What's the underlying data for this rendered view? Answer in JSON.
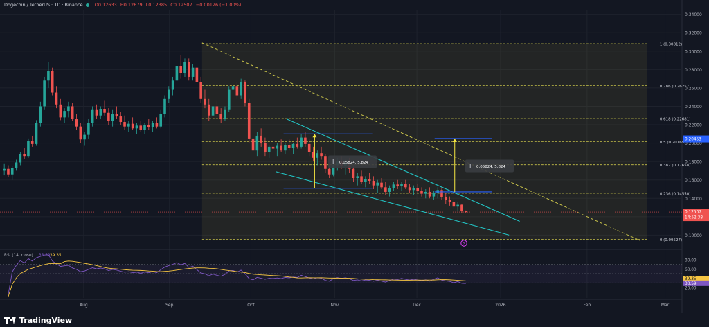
{
  "header": {
    "symbol": "Dogecoin / TetherUS · 1D · Binance",
    "open": "O0.12633",
    "high": "H0.12679",
    "low": "L0.12385",
    "close": "C0.12507",
    "change": "−0.00126 (−1.00%)"
  },
  "rsi_panel": {
    "label": "RSI (14, close)",
    "rsi_value": "33.59",
    "ma_value": "39.35",
    "levels": [
      80,
      60,
      40,
      20
    ],
    "level_labels": [
      "80.00",
      "60.00",
      "40.00",
      "20.00"
    ],
    "rsi_color": "#7e57c2",
    "ma_color": "#f5c542"
  },
  "price_tags": {
    "current": "0.12507",
    "countdown": "14:52:38",
    "marker": "0.20453"
  },
  "measurements": [
    {
      "label": "0.05824, 5,824"
    },
    {
      "label": "0.05824, 5,824"
    }
  ],
  "brand": {
    "name": "TradingView"
  },
  "colors": {
    "up": "#26a69a",
    "down": "#ef5350",
    "fib": "#c8c24a",
    "channel": "#22c5c5",
    "range_line": "#2962ff",
    "arrow": "#f5e642"
  },
  "chart_data": {
    "type": "candlestick",
    "title": "Dogecoin / TetherUS · 1D · Binance",
    "y_axis": {
      "min": 0.092,
      "max": 0.345,
      "ticks": [
        0.1,
        0.12,
        0.14,
        0.16,
        0.18,
        0.2,
        0.22,
        0.24,
        0.26,
        0.28,
        0.3,
        0.32,
        0.34
      ],
      "tick_labels": [
        "0.10000",
        "0.12000",
        "0.14000",
        "0.16000",
        "0.18000",
        "0.20000",
        "0.22000",
        "0.24000",
        "0.26000",
        "0.28000",
        "0.30000",
        "0.32000",
        "0.34000"
      ]
    },
    "x_axis": {
      "labels": [
        "Aug",
        "Sep",
        "Oct",
        "Nov",
        "Dec",
        "2026",
        "Feb",
        "Mar"
      ],
      "positions": [
        0.118,
        0.239,
        0.354,
        0.472,
        0.588,
        0.706,
        0.828,
        0.938
      ]
    },
    "fibonacci": [
      {
        "ratio": "1",
        "price": 0.30812,
        "label": "1 (0.30812)"
      },
      {
        "ratio": "0.786",
        "price": 0.26257,
        "label": "0.786 (0.26257)"
      },
      {
        "ratio": "0.618",
        "price": 0.22681,
        "label": "0.618 (0.22681)"
      },
      {
        "ratio": "0.5",
        "price": 0.20169,
        "label": "0.5 (0.20169)"
      },
      {
        "ratio": "0.382",
        "price": 0.17658,
        "label": "0.382 (0.17658)"
      },
      {
        "ratio": "0.236",
        "price": 0.1455,
        "label": "0.236 (0.14550)"
      },
      {
        "ratio": "0",
        "price": 0.09527,
        "label": "0 (0.09527)"
      }
    ],
    "candles_ohlc": [
      [
        0.17,
        0.178,
        0.165,
        0.172
      ],
      [
        0.172,
        0.176,
        0.163,
        0.166
      ],
      [
        0.166,
        0.175,
        0.16,
        0.173
      ],
      [
        0.173,
        0.182,
        0.17,
        0.179
      ],
      [
        0.179,
        0.19,
        0.176,
        0.188
      ],
      [
        0.188,
        0.195,
        0.183,
        0.186
      ],
      [
        0.186,
        0.205,
        0.184,
        0.202
      ],
      [
        0.202,
        0.208,
        0.196,
        0.199
      ],
      [
        0.199,
        0.225,
        0.197,
        0.222
      ],
      [
        0.222,
        0.245,
        0.218,
        0.24
      ],
      [
        0.24,
        0.272,
        0.236,
        0.268
      ],
      [
        0.268,
        0.288,
        0.26,
        0.278
      ],
      [
        0.278,
        0.282,
        0.252,
        0.255
      ],
      [
        0.255,
        0.262,
        0.238,
        0.242
      ],
      [
        0.242,
        0.248,
        0.225,
        0.228
      ],
      [
        0.228,
        0.238,
        0.222,
        0.235
      ],
      [
        0.235,
        0.245,
        0.228,
        0.24
      ],
      [
        0.24,
        0.244,
        0.224,
        0.226
      ],
      [
        0.226,
        0.232,
        0.214,
        0.218
      ],
      [
        0.218,
        0.222,
        0.2,
        0.204
      ],
      [
        0.204,
        0.212,
        0.197,
        0.209
      ],
      [
        0.209,
        0.226,
        0.205,
        0.222
      ],
      [
        0.222,
        0.24,
        0.218,
        0.236
      ],
      [
        0.236,
        0.242,
        0.226,
        0.23
      ],
      [
        0.23,
        0.24,
        0.226,
        0.237
      ],
      [
        0.237,
        0.246,
        0.23,
        0.233
      ],
      [
        0.233,
        0.238,
        0.22,
        0.224
      ],
      [
        0.224,
        0.236,
        0.218,
        0.232
      ],
      [
        0.232,
        0.24,
        0.226,
        0.229
      ],
      [
        0.229,
        0.234,
        0.22,
        0.223
      ],
      [
        0.223,
        0.23,
        0.214,
        0.218
      ],
      [
        0.218,
        0.224,
        0.212,
        0.221
      ],
      [
        0.221,
        0.228,
        0.214,
        0.216
      ],
      [
        0.216,
        0.222,
        0.21,
        0.219
      ],
      [
        0.219,
        0.224,
        0.212,
        0.214
      ],
      [
        0.214,
        0.222,
        0.21,
        0.22
      ],
      [
        0.22,
        0.226,
        0.214,
        0.217
      ],
      [
        0.217,
        0.224,
        0.212,
        0.222
      ],
      [
        0.222,
        0.228,
        0.216,
        0.218
      ],
      [
        0.218,
        0.236,
        0.216,
        0.232
      ],
      [
        0.232,
        0.252,
        0.228,
        0.248
      ],
      [
        0.248,
        0.262,
        0.244,
        0.258
      ],
      [
        0.258,
        0.272,
        0.252,
        0.268
      ],
      [
        0.268,
        0.288,
        0.262,
        0.284
      ],
      [
        0.284,
        0.296,
        0.27,
        0.276
      ],
      [
        0.276,
        0.292,
        0.272,
        0.288
      ],
      [
        0.288,
        0.292,
        0.268,
        0.272
      ],
      [
        0.272,
        0.286,
        0.268,
        0.282
      ],
      [
        0.282,
        0.288,
        0.262,
        0.266
      ],
      [
        0.266,
        0.272,
        0.244,
        0.248
      ],
      [
        0.248,
        0.258,
        0.238,
        0.242
      ],
      [
        0.242,
        0.248,
        0.224,
        0.23
      ],
      [
        0.23,
        0.244,
        0.226,
        0.24
      ],
      [
        0.24,
        0.246,
        0.228,
        0.232
      ],
      [
        0.232,
        0.238,
        0.222,
        0.226
      ],
      [
        0.226,
        0.24,
        0.224,
        0.236
      ],
      [
        0.236,
        0.262,
        0.234,
        0.258
      ],
      [
        0.258,
        0.268,
        0.25,
        0.262
      ],
      [
        0.262,
        0.266,
        0.248,
        0.252
      ],
      [
        0.252,
        0.27,
        0.248,
        0.266
      ],
      [
        0.266,
        0.268,
        0.24,
        0.244
      ],
      [
        0.244,
        0.248,
        0.2,
        0.205
      ],
      [
        0.205,
        0.21,
        0.098,
        0.192
      ],
      [
        0.192,
        0.212,
        0.186,
        0.208
      ],
      [
        0.208,
        0.216,
        0.196,
        0.2
      ],
      [
        0.2,
        0.206,
        0.186,
        0.19
      ],
      [
        0.19,
        0.198,
        0.184,
        0.196
      ],
      [
        0.196,
        0.204,
        0.19,
        0.194
      ],
      [
        0.194,
        0.2,
        0.186,
        0.197
      ],
      [
        0.197,
        0.204,
        0.19,
        0.192
      ],
      [
        0.192,
        0.2,
        0.188,
        0.198
      ],
      [
        0.198,
        0.204,
        0.192,
        0.195
      ],
      [
        0.195,
        0.2,
        0.188,
        0.199
      ],
      [
        0.199,
        0.206,
        0.194,
        0.196
      ],
      [
        0.196,
        0.21,
        0.194,
        0.206
      ],
      [
        0.206,
        0.212,
        0.196,
        0.199
      ],
      [
        0.199,
        0.204,
        0.186,
        0.19
      ],
      [
        0.19,
        0.196,
        0.18,
        0.184
      ],
      [
        0.184,
        0.192,
        0.176,
        0.189
      ],
      [
        0.189,
        0.196,
        0.182,
        0.186
      ],
      [
        0.186,
        0.188,
        0.168,
        0.172
      ],
      [
        0.172,
        0.178,
        0.162,
        0.166
      ],
      [
        0.166,
        0.18,
        0.164,
        0.176
      ],
      [
        0.176,
        0.184,
        0.17,
        0.18
      ],
      [
        0.18,
        0.186,
        0.172,
        0.175
      ],
      [
        0.175,
        0.182,
        0.166,
        0.178
      ],
      [
        0.178,
        0.184,
        0.168,
        0.172
      ],
      [
        0.172,
        0.176,
        0.158,
        0.162
      ],
      [
        0.162,
        0.168,
        0.154,
        0.164
      ],
      [
        0.164,
        0.17,
        0.156,
        0.158
      ],
      [
        0.158,
        0.164,
        0.152,
        0.161
      ],
      [
        0.161,
        0.168,
        0.156,
        0.159
      ],
      [
        0.159,
        0.164,
        0.15,
        0.154
      ],
      [
        0.154,
        0.16,
        0.146,
        0.157
      ],
      [
        0.157,
        0.162,
        0.15,
        0.152
      ],
      [
        0.152,
        0.158,
        0.144,
        0.147
      ],
      [
        0.147,
        0.154,
        0.142,
        0.151
      ],
      [
        0.151,
        0.158,
        0.148,
        0.155
      ],
      [
        0.155,
        0.16,
        0.15,
        0.153
      ],
      [
        0.153,
        0.158,
        0.148,
        0.156
      ],
      [
        0.156,
        0.16,
        0.15,
        0.152
      ],
      [
        0.152,
        0.156,
        0.146,
        0.149
      ],
      [
        0.149,
        0.154,
        0.144,
        0.151
      ],
      [
        0.151,
        0.156,
        0.146,
        0.148
      ],
      [
        0.148,
        0.152,
        0.142,
        0.145
      ],
      [
        0.145,
        0.15,
        0.14,
        0.147
      ],
      [
        0.147,
        0.152,
        0.14,
        0.142
      ],
      [
        0.142,
        0.148,
        0.138,
        0.146
      ],
      [
        0.146,
        0.152,
        0.14,
        0.149
      ],
      [
        0.149,
        0.152,
        0.138,
        0.141
      ],
      [
        0.141,
        0.146,
        0.134,
        0.138
      ],
      [
        0.138,
        0.142,
        0.132,
        0.136
      ],
      [
        0.136,
        0.14,
        0.128,
        0.131
      ],
      [
        0.131,
        0.136,
        0.126,
        0.133
      ],
      [
        0.133,
        0.134,
        0.124,
        0.126
      ],
      [
        0.12633,
        0.12679,
        0.12385,
        0.12507
      ]
    ],
    "candles_x_start": 0.006,
    "candles_x_end": 0.657,
    "drawings": {
      "descending_trendline": {
        "start": {
          "x": 0.285,
          "y": 0.309
        },
        "end": {
          "x": 0.903,
          "y": 0.094
        }
      },
      "channel_upper": {
        "start": {
          "x": 0.405,
          "y": 0.226
        },
        "end": {
          "x": 0.733,
          "y": 0.115
        }
      },
      "channel_lower": {
        "start": {
          "x": 0.389,
          "y": 0.169
        },
        "end": {
          "x": 0.718,
          "y": 0.1
        }
      },
      "range_left": {
        "x_start": 0.4,
        "x_end": 0.525,
        "top": 0.21,
        "bottom": 0.151
      },
      "range_right": {
        "x_start": 0.613,
        "x_end": 0.694,
        "top": 0.205,
        "bottom": 0.147
      },
      "fib_box": {
        "x_start": 0.285,
        "x_end": 0.913
      }
    }
  }
}
